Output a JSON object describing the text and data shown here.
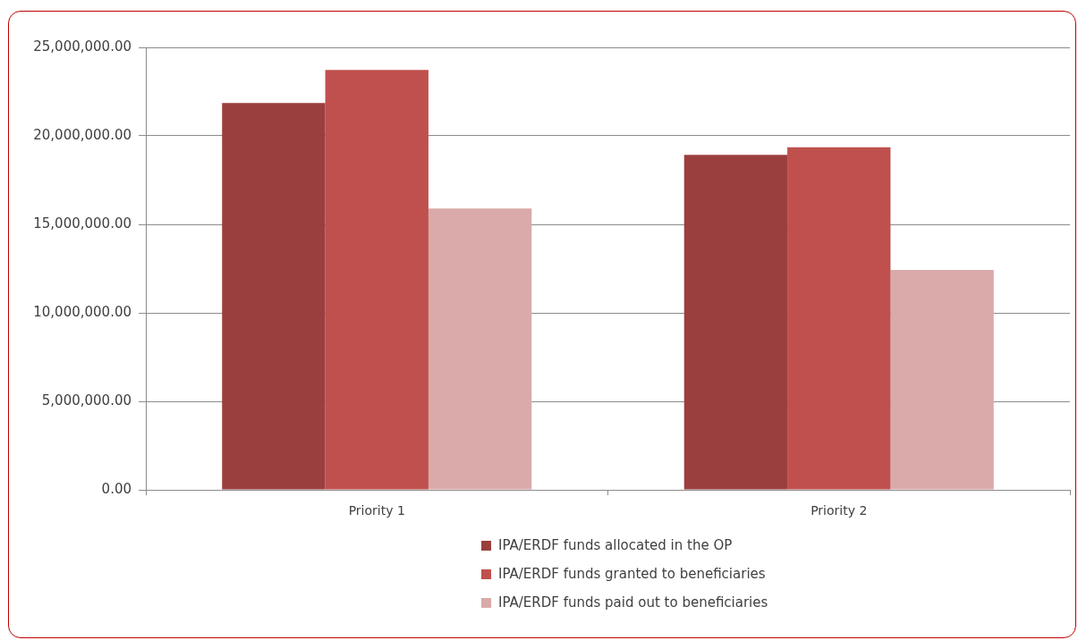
{
  "chart_data": {
    "type": "bar",
    "categories": [
      "Priority 1",
      "Priority 2"
    ],
    "series": [
      {
        "name": "IPA/ERDF funds allocated in the OP",
        "color": "#9b3f3e",
        "values": [
          21850000,
          18930000
        ]
      },
      {
        "name": "IPA/ERDF funds granted to beneficiaries",
        "color": "#c0504d",
        "values": [
          23730000,
          19360000
        ]
      },
      {
        "name": "IPA/ERDF funds paid out to beneficiaries",
        "color": "#d9aaa9",
        "values": [
          15900000,
          12420000
        ]
      }
    ],
    "ylim": [
      0,
      25000000
    ],
    "yticks": [
      {
        "value": 0,
        "label": "0.00"
      },
      {
        "value": 5000000,
        "label": "5,000,000.00"
      },
      {
        "value": 10000000,
        "label": "10,000,000.00"
      },
      {
        "value": 15000000,
        "label": "15,000,000.00"
      },
      {
        "value": 20000000,
        "label": "20,000,000.00"
      },
      {
        "value": 25000000,
        "label": "25,000,000.00"
      }
    ],
    "grid": "y",
    "legend": "bottom"
  }
}
